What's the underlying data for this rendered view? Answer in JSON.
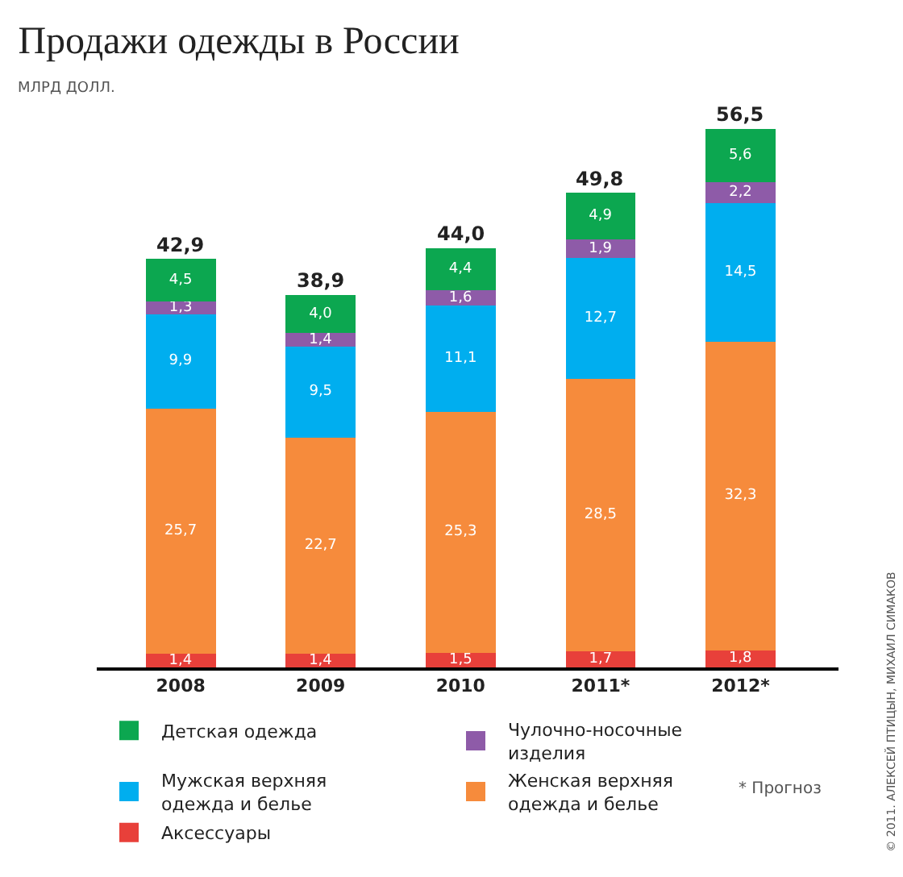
{
  "chart_data": {
    "type": "bar",
    "stacked": true,
    "title": "Продажи одежды в России",
    "ylabel": "МЛРД ДОЛЛ.",
    "categories": [
      "2008",
      "2009",
      "2010",
      "2011*",
      "2012*"
    ],
    "series": [
      {
        "name": "Аксессуары",
        "color": "#e8403a",
        "values": [
          1.4,
          1.4,
          1.5,
          1.7,
          1.8
        ],
        "value_labels": [
          "1,4",
          "1,4",
          "1,5",
          "1,7",
          "1,8"
        ]
      },
      {
        "name": "Женская верхняя\nодежда и белье",
        "color": "#f68b3c",
        "values": [
          25.7,
          22.7,
          25.3,
          28.5,
          32.3
        ],
        "value_labels": [
          "25,7",
          "22,7",
          "25,3",
          "28,5",
          "32,3"
        ]
      },
      {
        "name": "Мужская верхняя\nодежда и белье",
        "color": "#00aeef",
        "values": [
          9.9,
          9.5,
          11.1,
          12.7,
          14.5
        ],
        "value_labels": [
          "9,9",
          "9,5",
          "11,1",
          "12,7",
          "14,5"
        ]
      },
      {
        "name": "Чулочно-носочные\nизделия",
        "color": "#8e5ba8",
        "values": [
          1.3,
          1.4,
          1.6,
          1.9,
          2.2
        ],
        "value_labels": [
          "1,3",
          "1,4",
          "1,6",
          "1,9",
          "2,2"
        ]
      },
      {
        "name": "Детская одежда",
        "color": "#0ca750",
        "values": [
          4.5,
          4.0,
          4.4,
          4.9,
          5.6
        ],
        "value_labels": [
          "4,5",
          "4,0",
          "4,4",
          "4,9",
          "5,6"
        ]
      }
    ],
    "totals": [
      "42,9",
      "38,9",
      "44,0",
      "49,8",
      "56,5"
    ],
    "legend": "bottom",
    "annotations": [
      "* Прогноз",
      "© 2011. АЛЕКСЕЙ ПТИЦЫН, МИХАИЛ СИМАКОВ"
    ]
  }
}
